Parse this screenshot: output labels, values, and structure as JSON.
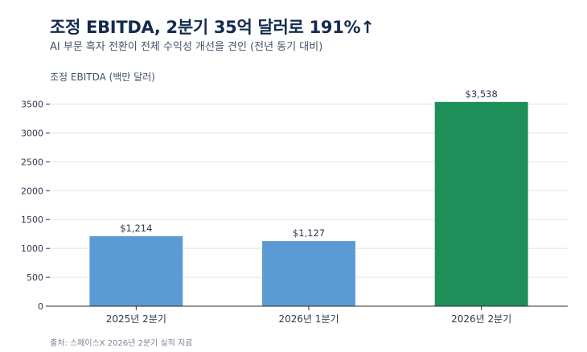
{
  "header": {
    "title": "조정 EBITDA, 2분기 35억 달러로 191%↑",
    "subtitle": "AI 부문 흑자 전환이 전체 수익성 개선을 견인 (전년 동기 대비)"
  },
  "footer": {
    "source": "출처: 스페이스X 2026년 2분기 실적 자료"
  },
  "chart_data": {
    "type": "bar",
    "title": "조정 EBITDA, 2분기 35억 달러로 191%↑",
    "subtitle": "AI 부문 흑자 전환이 전체 수익성 개선을 견인 (전년 동기 대비)",
    "ylabel": "조정 EBITDA (백만 달러)",
    "xlabel": "",
    "categories": [
      "2025년 2분기",
      "2026년 1분기",
      "2026년 2분기"
    ],
    "values": [
      1214,
      1127,
      3538
    ],
    "data_labels": [
      "$1,214",
      "$1,127",
      "$3,538"
    ],
    "colors": [
      "#5b9bd5",
      "#5b9bd5",
      "#1f8f5a"
    ],
    "ylim": [
      0,
      3800
    ],
    "yticks": [
      0,
      500,
      1000,
      1500,
      2000,
      2500,
      3000,
      3500
    ],
    "grid": true,
    "legend": "none"
  }
}
